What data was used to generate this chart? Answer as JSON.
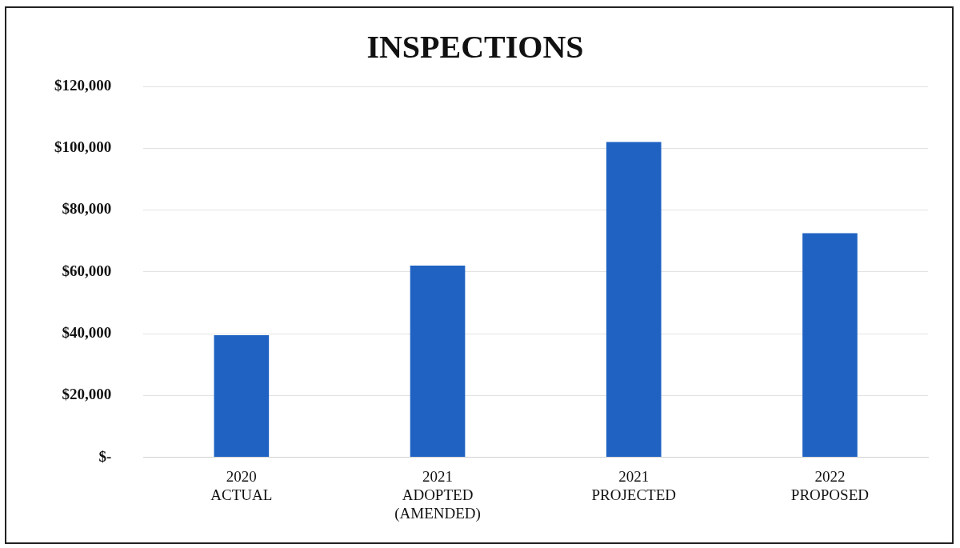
{
  "chart_data": {
    "type": "bar",
    "title": "INSPECTIONS",
    "categories": [
      "2020\nACTUAL",
      "2021\nADOPTED\n(AMENDED)",
      "2021\nPROJECTED",
      "2022\nPROPOSED"
    ],
    "values": [
      39500,
      62000,
      102000,
      72500
    ],
    "color": "#1f62c2",
    "ylim": [
      0,
      120000
    ],
    "yticks": [
      {
        "value": 0,
        "label": "$-"
      },
      {
        "value": 20000,
        "label": "$20,000"
      },
      {
        "value": 40000,
        "label": "$40,000"
      },
      {
        "value": 60000,
        "label": "$60,000"
      },
      {
        "value": 80000,
        "label": "$80,000"
      },
      {
        "value": 100000,
        "label": "$100,000"
      },
      {
        "value": 120000,
        "label": "$120,000"
      }
    ],
    "grid": "y",
    "legend": false
  }
}
